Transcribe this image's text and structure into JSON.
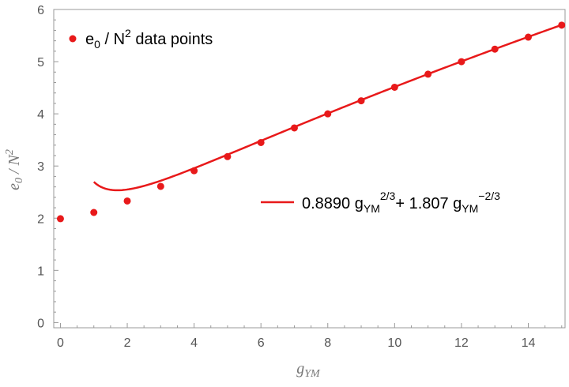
{
  "chart_data": {
    "type": "scatter",
    "xlabel": {
      "main": "g",
      "sub": "YM"
    },
    "ylabel": {
      "main": "e",
      "sub": "0",
      "mid": " / N",
      "sup": "2"
    },
    "xlim": [
      -0.2,
      15.1
    ],
    "ylim": [
      -0.1,
      6
    ],
    "x_ticks": [
      0,
      2,
      4,
      6,
      8,
      10,
      12,
      14
    ],
    "y_ticks": [
      0,
      1,
      2,
      3,
      4,
      5,
      6
    ],
    "grid": false,
    "colors": {
      "series": "#e8191a",
      "axis": "#999999",
      "text": "#555555"
    },
    "series": [
      {
        "type": "scatter",
        "legend": {
          "placement": "top-left",
          "main": "e",
          "sub": "0",
          "mid": " / N",
          "sup": "2",
          "tail": " data points"
        },
        "x": [
          0,
          1,
          2,
          3,
          4,
          5,
          6,
          7,
          8,
          9,
          10,
          11,
          12,
          13,
          14,
          15
        ],
        "y": [
          1.99,
          2.11,
          2.33,
          2.61,
          2.91,
          3.18,
          3.45,
          3.73,
          4.0,
          4.25,
          4.51,
          4.76,
          5.0,
          5.24,
          5.47,
          5.7
        ]
      },
      {
        "type": "line",
        "legend": {
          "placement": "middle-right",
          "c1": "0.8890 g",
          "sub1": "YM",
          "sup1": "2/3",
          "c2": "+ 1.807 g",
          "sub2": "YM",
          "sup2": "−2/3"
        },
        "formula": {
          "a": 0.889,
          "b": 1.807,
          "power": 0.6666667
        },
        "x_range": [
          1,
          15
        ]
      }
    ]
  }
}
